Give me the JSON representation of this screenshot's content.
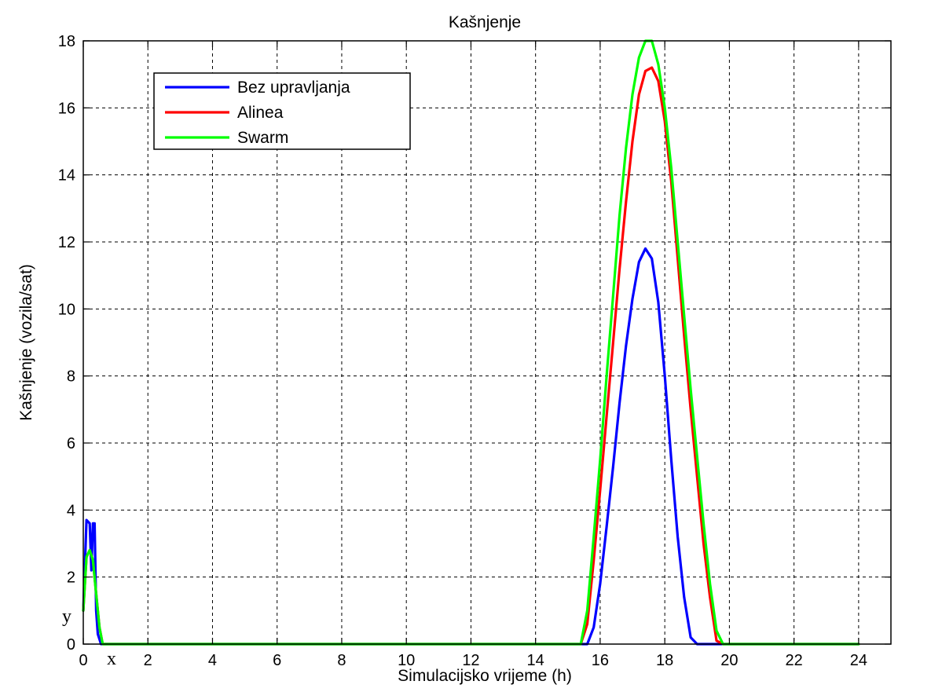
{
  "chart_data": {
    "type": "line",
    "title": "Kašnjenje",
    "xlabel": "Simulacijsko vrijeme (h)",
    "ylabel": "Kašnjenje (vozila/sat)",
    "xlim": [
      0,
      25
    ],
    "ylim": [
      0,
      18
    ],
    "xticks": [
      0,
      2,
      4,
      6,
      8,
      10,
      12,
      14,
      16,
      18,
      20,
      22,
      24
    ],
    "yticks": [
      0,
      2,
      4,
      6,
      8,
      10,
      12,
      14,
      16,
      18
    ],
    "grid": true,
    "legend_position": "top-left",
    "annotations": [
      "x",
      "y"
    ],
    "series": [
      {
        "name": "Bez upravljanja",
        "color": "#0000ff",
        "x": [
          0,
          0.1,
          0.2,
          0.25,
          0.3,
          0.35,
          0.4,
          0.45,
          0.55,
          0.65,
          1,
          15.6,
          15.8,
          16.0,
          16.2,
          16.4,
          16.6,
          16.8,
          17.0,
          17.2,
          17.4,
          17.6,
          17.8,
          18.0,
          18.2,
          18.4,
          18.6,
          18.8,
          19.0,
          19.2,
          24
        ],
        "y": [
          1.0,
          3.7,
          3.6,
          2.2,
          3.6,
          3.6,
          1.0,
          0.3,
          0,
          0,
          0,
          0,
          0.5,
          1.8,
          3.5,
          5.3,
          7.2,
          8.9,
          10.3,
          11.4,
          11.8,
          11.5,
          10.2,
          8.0,
          5.5,
          3.2,
          1.4,
          0.2,
          0,
          0,
          0
        ]
      },
      {
        "name": "Alinea",
        "color": "#ff0000",
        "x": [
          0,
          0.1,
          0.2,
          0.3,
          0.4,
          0.5,
          0.6,
          1,
          15.4,
          15.6,
          15.8,
          16.0,
          16.2,
          16.4,
          16.6,
          16.8,
          17.0,
          17.2,
          17.4,
          17.6,
          17.8,
          18.0,
          18.2,
          18.4,
          18.6,
          18.8,
          19.0,
          19.2,
          19.4,
          19.6,
          19.8,
          24
        ],
        "y": [
          1.0,
          2.6,
          2.8,
          2.5,
          1.5,
          0.5,
          0,
          0,
          0,
          0.6,
          2.5,
          4.6,
          6.8,
          9.0,
          11.2,
          13.2,
          15.0,
          16.4,
          17.1,
          17.2,
          16.8,
          15.6,
          13.8,
          11.5,
          9.2,
          7.0,
          5.0,
          3.0,
          1.4,
          0.1,
          0,
          0
        ]
      },
      {
        "name": "Swarm",
        "color": "#00ff00",
        "x": [
          0,
          0.1,
          0.2,
          0.3,
          0.4,
          0.5,
          0.6,
          1,
          15.4,
          15.6,
          15.8,
          16.0,
          16.2,
          16.4,
          16.6,
          16.8,
          17.0,
          17.2,
          17.4,
          17.6,
          17.8,
          18.0,
          18.2,
          18.4,
          18.6,
          18.8,
          19.0,
          19.2,
          19.4,
          19.6,
          19.8,
          20,
          24
        ],
        "y": [
          1.0,
          2.6,
          2.8,
          2.5,
          1.5,
          0.5,
          0,
          0,
          0,
          1.0,
          3.2,
          5.5,
          8.0,
          10.4,
          12.8,
          14.8,
          16.4,
          17.5,
          18.0,
          18.0,
          17.3,
          16.0,
          14.2,
          12.0,
          9.8,
          7.6,
          5.6,
          3.6,
          1.8,
          0.4,
          0,
          0,
          0
        ]
      }
    ]
  }
}
